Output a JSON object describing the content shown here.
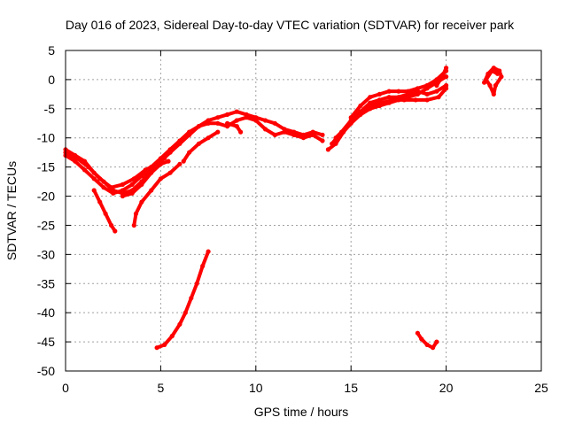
{
  "chart_data": {
    "type": "scatter",
    "title": "Day 016 of 2023, Sidereal Day-to-day VTEC variation (SDTVAR) for receiver park",
    "xlabel": "GPS time / hours",
    "ylabel": "SDTVAR / TECUs",
    "xlim": [
      0,
      25
    ],
    "ylim": [
      -50,
      5
    ],
    "xticks": [
      0,
      5,
      10,
      15,
      20,
      25
    ],
    "yticks": [
      5,
      0,
      -5,
      -10,
      -15,
      -20,
      -25,
      -30,
      -35,
      -40,
      -45,
      -50
    ],
    "grid": true,
    "series_color": "#ff0000",
    "series": [
      {
        "name": "track-1",
        "points": [
          [
            0,
            -12
          ],
          [
            0.5,
            -13
          ],
          [
            1,
            -14
          ],
          [
            1.5,
            -16
          ],
          [
            2,
            -17.5
          ],
          [
            2.5,
            -19
          ],
          [
            3,
            -19.5
          ],
          [
            3.5,
            -19
          ],
          [
            4,
            -17.5
          ],
          [
            4.5,
            -15.5
          ],
          [
            5,
            -14
          ],
          [
            5.5,
            -12.5
          ],
          [
            6,
            -11
          ],
          [
            6.5,
            -9.5
          ],
          [
            7,
            -8
          ],
          [
            7.5,
            -7.5
          ],
          [
            8,
            -7.5
          ],
          [
            8.5,
            -8
          ],
          [
            9,
            -7
          ],
          [
            9.5,
            -6.5
          ],
          [
            10,
            -7
          ],
          [
            10.5,
            -8.5
          ],
          [
            11,
            -9.5
          ],
          [
            11.5,
            -9
          ],
          [
            12,
            -9.5
          ],
          [
            12.5,
            -10
          ],
          [
            13,
            -9.5
          ],
          [
            13.5,
            -10.5
          ]
        ]
      },
      {
        "name": "track-2",
        "points": [
          [
            0,
            -13
          ],
          [
            0.5,
            -14
          ],
          [
            1,
            -15.5
          ],
          [
            1.5,
            -17
          ],
          [
            2,
            -18.5
          ],
          [
            2.5,
            -19.5
          ],
          [
            3,
            -19
          ],
          [
            3.5,
            -18
          ],
          [
            4,
            -16.5
          ],
          [
            4.5,
            -15
          ],
          [
            5,
            -13.5
          ],
          [
            5.5,
            -12
          ],
          [
            6,
            -10.5
          ],
          [
            6.5,
            -9
          ],
          [
            7,
            -8
          ],
          [
            7.5,
            -7
          ],
          [
            8,
            -6.5
          ],
          [
            8.5,
            -6
          ],
          [
            9,
            -5.5
          ],
          [
            9.5,
            -6
          ],
          [
            10,
            -6.5
          ],
          [
            10.5,
            -7
          ],
          [
            11,
            -7.5
          ],
          [
            11.5,
            -8.5
          ],
          [
            12,
            -9
          ],
          [
            12.5,
            -9.5
          ],
          [
            13,
            -9
          ],
          [
            13.5,
            -9.5
          ]
        ]
      },
      {
        "name": "track-3",
        "points": [
          [
            0,
            -12.5
          ],
          [
            0.6,
            -13.5
          ],
          [
            1.2,
            -15
          ],
          [
            1.8,
            -17
          ],
          [
            2.4,
            -18.5
          ],
          [
            3,
            -18
          ],
          [
            3.6,
            -17
          ],
          [
            4.2,
            -15.5
          ],
          [
            4.8,
            -14.5
          ],
          [
            5.2,
            -13.5
          ]
        ]
      },
      {
        "name": "track-4",
        "points": [
          [
            1.5,
            -19
          ],
          [
            1.8,
            -21
          ],
          [
            2.1,
            -23
          ],
          [
            2.4,
            -25
          ],
          [
            2.6,
            -26
          ]
        ]
      },
      {
        "name": "track-5",
        "points": [
          [
            3,
            -20
          ],
          [
            3.5,
            -19.5
          ],
          [
            4,
            -18
          ],
          [
            4.5,
            -16
          ],
          [
            5,
            -14.5
          ],
          [
            5.4,
            -14
          ]
        ]
      },
      {
        "name": "track-6",
        "points": [
          [
            3.6,
            -25
          ],
          [
            3.7,
            -23
          ],
          [
            4,
            -21
          ],
          [
            4.5,
            -19
          ],
          [
            5,
            -17
          ],
          [
            5.5,
            -16
          ],
          [
            6,
            -14.5
          ]
        ]
      },
      {
        "name": "track-7",
        "points": [
          [
            6.2,
            -14
          ],
          [
            6.5,
            -12.5
          ],
          [
            7,
            -11
          ],
          [
            7.5,
            -10
          ],
          [
            8,
            -9
          ]
        ]
      },
      {
        "name": "track-8",
        "points": [
          [
            8.5,
            -7.5
          ],
          [
            9,
            -8
          ],
          [
            9.2,
            -9
          ]
        ]
      },
      {
        "name": "track-9",
        "points": [
          [
            13.8,
            -12
          ],
          [
            14.2,
            -11
          ],
          [
            14.6,
            -9
          ],
          [
            15,
            -7.5
          ],
          [
            15.5,
            -6
          ],
          [
            16,
            -5
          ],
          [
            16.5,
            -4.5
          ],
          [
            17,
            -4
          ],
          [
            17.5,
            -3.5
          ],
          [
            18,
            -3
          ],
          [
            18.5,
            -2.5
          ],
          [
            19,
            -1.5
          ],
          [
            19.5,
            -0.5
          ],
          [
            20,
            0.5
          ]
        ]
      },
      {
        "name": "track-10",
        "points": [
          [
            14,
            -11
          ],
          [
            14.5,
            -9
          ],
          [
            15,
            -7
          ],
          [
            15.5,
            -5.5
          ],
          [
            16,
            -4
          ],
          [
            16.5,
            -3.5
          ],
          [
            17,
            -3
          ],
          [
            17.5,
            -3
          ],
          [
            18,
            -2.5
          ],
          [
            18.5,
            -2
          ],
          [
            19,
            -2.5
          ],
          [
            19.5,
            -2
          ],
          [
            20,
            -1
          ]
        ]
      },
      {
        "name": "track-11",
        "points": [
          [
            14.2,
            -10
          ],
          [
            14.8,
            -8
          ],
          [
            15.4,
            -6
          ],
          [
            16,
            -4.5
          ],
          [
            16.6,
            -4
          ],
          [
            17.2,
            -3.5
          ],
          [
            17.8,
            -3.5
          ],
          [
            18.4,
            -3.5
          ],
          [
            19,
            -3.5
          ],
          [
            19.6,
            -3
          ],
          [
            20,
            -1.5
          ]
        ]
      },
      {
        "name": "track-12",
        "points": [
          [
            15,
            -6.5
          ],
          [
            15.5,
            -4.5
          ],
          [
            16,
            -3
          ],
          [
            16.5,
            -2.5
          ],
          [
            17,
            -2
          ],
          [
            17.5,
            -2
          ],
          [
            18,
            -2
          ],
          [
            18.5,
            -1.5
          ],
          [
            19,
            -1
          ],
          [
            19.5,
            0
          ],
          [
            20,
            1.5
          ]
        ]
      },
      {
        "name": "track-13",
        "points": [
          [
            19.5,
            -1
          ],
          [
            19.8,
            0.5
          ],
          [
            20,
            2
          ]
        ]
      },
      {
        "name": "track-14",
        "points": [
          [
            22,
            -0.5
          ],
          [
            22.2,
            1
          ],
          [
            22.5,
            2
          ],
          [
            22.8,
            1.5
          ],
          [
            22.9,
            0.5
          ],
          [
            22.6,
            -1
          ],
          [
            22.5,
            -2.5
          ],
          [
            22.3,
            -1
          ],
          [
            22.1,
            0
          ],
          [
            22.4,
            1.5
          ],
          [
            22.7,
            1
          ]
        ]
      },
      {
        "name": "track-15",
        "points": [
          [
            4.8,
            -46
          ],
          [
            5.2,
            -45.5
          ],
          [
            5.6,
            -44
          ],
          [
            6,
            -42
          ],
          [
            6.3,
            -40
          ],
          [
            6.6,
            -37.5
          ],
          [
            6.9,
            -35
          ],
          [
            7.2,
            -32
          ],
          [
            7.5,
            -29.5
          ]
        ]
      },
      {
        "name": "track-16",
        "points": [
          [
            18.5,
            -43.5
          ],
          [
            18.7,
            -44.5
          ],
          [
            19,
            -45.5
          ],
          [
            19.3,
            -46
          ],
          [
            19.5,
            -45
          ]
        ]
      }
    ]
  }
}
